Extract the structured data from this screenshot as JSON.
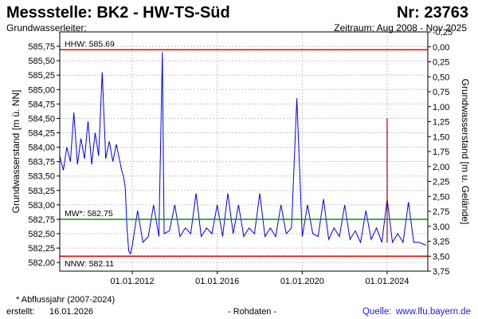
{
  "header": {
    "title": "Messstelle: BK2 - HW-TS-Süd",
    "number": "Nr: 23763",
    "subtitle_left": "Grundwasserleiter:",
    "period": "Zeitraum: Aug 2008 - Nov 2025"
  },
  "footer": {
    "note": "* Abflussjahr (2007-2024)",
    "created_label": "erstellt:",
    "created_date": "16.01.2026",
    "data_type": "- Rohdaten -",
    "source_label": "Quelle:",
    "source_url": "www.lfu.bayern.de"
  },
  "colors": {
    "series": "#0000ee",
    "hhw": "#ee0000",
    "nnw": "#ee0000",
    "mw": "#009900",
    "grid": "#c8c8c8",
    "latest": "#b00000"
  },
  "chart_data": {
    "type": "line",
    "ylabel_left": "Grundwasserstand [m ü. NN]",
    "ylabel_right": "Grundwasserstand [m u. Gelände]",
    "ylim": [
      581.85,
      586.0
    ],
    "ylim_right": [
      3.75,
      -0.25
    ],
    "xlim": [
      "2008-08-01",
      "2025-11-30"
    ],
    "y_ticks": [
      "582,00",
      "582,25",
      "582,50",
      "582,75",
      "583,00",
      "583,25",
      "583,50",
      "583,75",
      "584,00",
      "584,25",
      "584,50",
      "584,75",
      "585,00",
      "585,25",
      "585,50",
      "585,75"
    ],
    "y_ticks_right": [
      "-0,25",
      "0,00",
      "0,25",
      "0,50",
      "0,75",
      "1,00",
      "1,25",
      "1,50",
      "1,75",
      "2,00",
      "2,25",
      "2,50",
      "2,75",
      "3,00",
      "3,25",
      "3,50",
      "3,75"
    ],
    "x_ticks": [
      "01.01.2012",
      "01.01.2016",
      "01.01.2020",
      "01.01.2024"
    ],
    "grid": true,
    "reference_lines": [
      {
        "label": "HHW: 585.69",
        "value": 585.69,
        "key": "hhw"
      },
      {
        "label": "MW*: 582.75",
        "value": 582.75,
        "key": "mw"
      },
      {
        "label": "NNW: 582.11",
        "value": 582.11,
        "key": "nnw"
      }
    ],
    "series": [
      {
        "x": [
          "2008-08-01",
          "2008-10-01",
          "2008-12-01",
          "2009-02-01",
          "2009-04-01",
          "2009-06-01",
          "2009-08-01",
          "2009-10-01",
          "2009-12-01",
          "2010-02-01",
          "2010-04-01",
          "2010-06-01",
          "2010-08-01",
          "2010-10-01",
          "2010-12-01",
          "2011-02-01",
          "2011-04-01",
          "2011-06-01",
          "2011-07-01",
          "2011-08-01",
          "2011-09-01",
          "2011-10-01",
          "2011-11-01",
          "2011-12-01",
          "2012-01-01",
          "2012-04-01",
          "2012-07-01",
          "2012-10-01",
          "2013-01-01",
          "2013-04-01",
          "2013-06-01",
          "2013-07-01",
          "2013-10-01",
          "2014-01-01",
          "2014-04-01",
          "2014-07-01",
          "2014-10-01",
          "2015-01-01",
          "2015-04-01",
          "2015-07-01",
          "2015-10-01",
          "2016-01-01",
          "2016-04-01",
          "2016-07-01",
          "2016-10-01",
          "2017-01-01",
          "2017-04-01",
          "2017-07-01",
          "2017-10-01",
          "2018-01-01",
          "2018-04-01",
          "2018-07-01",
          "2018-10-01",
          "2019-01-01",
          "2019-04-01",
          "2019-07-01",
          "2019-10-01",
          "2020-01-01",
          "2020-04-01",
          "2020-07-01",
          "2020-10-01",
          "2021-01-01",
          "2021-04-01",
          "2021-07-01",
          "2021-10-01",
          "2022-01-01",
          "2022-04-01",
          "2022-07-01",
          "2022-10-01",
          "2023-01-01",
          "2023-04-01",
          "2023-07-01",
          "2023-10-01",
          "2024-01-01",
          "2024-04-01",
          "2024-07-01",
          "2024-10-01",
          "2025-01-01",
          "2025-04-01",
          "2025-07-01",
          "2025-11-01"
        ],
        "values": [
          583.85,
          583.6,
          584.0,
          583.75,
          584.6,
          583.7,
          584.15,
          583.8,
          584.45,
          583.7,
          584.25,
          583.85,
          585.3,
          583.8,
          584.1,
          583.75,
          584.05,
          583.75,
          583.6,
          583.5,
          583.3,
          582.6,
          582.2,
          582.15,
          582.3,
          582.9,
          582.35,
          582.45,
          583.0,
          582.45,
          585.65,
          582.5,
          582.55,
          583.0,
          582.45,
          582.6,
          582.5,
          583.2,
          582.45,
          582.6,
          582.5,
          583.0,
          582.45,
          583.2,
          582.5,
          583.0,
          582.45,
          582.6,
          582.5,
          583.2,
          582.45,
          582.6,
          582.45,
          583.0,
          582.5,
          582.6,
          584.85,
          582.45,
          583.0,
          582.5,
          582.45,
          583.1,
          582.4,
          582.6,
          582.45,
          583.0,
          582.4,
          582.55,
          582.35,
          582.9,
          582.4,
          582.6,
          582.35,
          583.1,
          582.35,
          582.5,
          582.35,
          583.05,
          582.35,
          582.35,
          582.3
        ]
      }
    ],
    "latest_marker": {
      "x": "2024-01-01",
      "value": 584.5
    }
  }
}
